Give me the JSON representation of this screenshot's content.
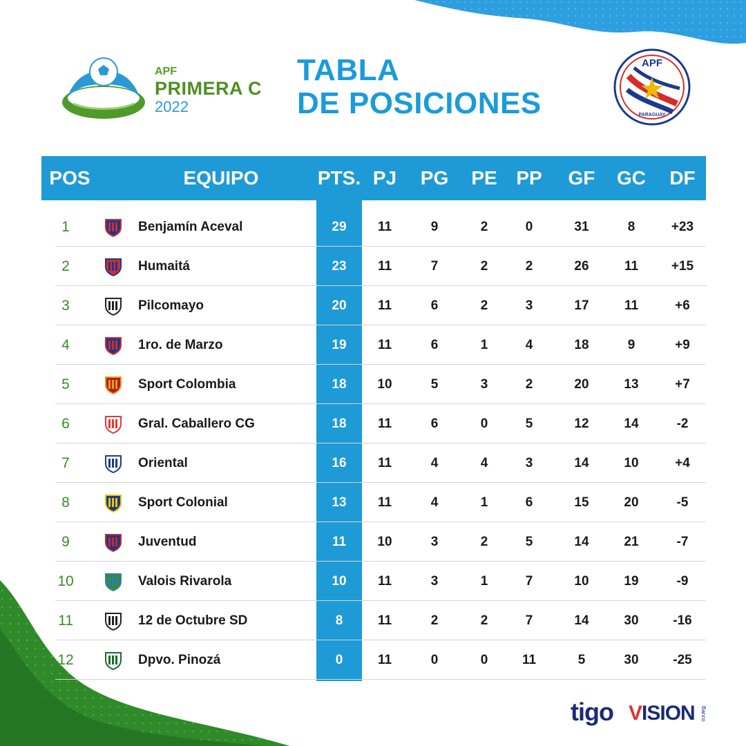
{
  "league": {
    "line1": "APF",
    "line2": "PRIMERA C",
    "line3": "2022"
  },
  "title": {
    "line1": "TABLA",
    "line2": "DE POSICIONES"
  },
  "federation_logo": {
    "top_text": "APF",
    "bottom_text": "PARAGUAY"
  },
  "table": {
    "headers": [
      "POS",
      "EQUIPO",
      "PTS.",
      "PJ",
      "PG",
      "PE",
      "PP",
      "GF",
      "GC",
      "DF"
    ],
    "rows": [
      {
        "pos": "1",
        "team": "Benjamín Aceval",
        "pts": "29",
        "pj": "11",
        "pg": "9",
        "pe": "2",
        "pp": "0",
        "gf": "31",
        "gc": "8",
        "df": "+23"
      },
      {
        "pos": "2",
        "team": "Humaitá",
        "pts": "23",
        "pj": "11",
        "pg": "7",
        "pe": "2",
        "pp": "2",
        "gf": "26",
        "gc": "11",
        "df": "+15"
      },
      {
        "pos": "3",
        "team": "Pilcomayo",
        "pts": "20",
        "pj": "11",
        "pg": "6",
        "pe": "2",
        "pp": "3",
        "gf": "17",
        "gc": "11",
        "df": "+6"
      },
      {
        "pos": "4",
        "team": "1ro. de Marzo",
        "pts": "19",
        "pj": "11",
        "pg": "6",
        "pe": "1",
        "pp": "4",
        "gf": "18",
        "gc": "9",
        "df": "+9"
      },
      {
        "pos": "5",
        "team": "Sport Colombia",
        "pts": "18",
        "pj": "10",
        "pg": "5",
        "pe": "3",
        "pp": "2",
        "gf": "20",
        "gc": "13",
        "df": "+7"
      },
      {
        "pos": "6",
        "team": "Gral. Caballero CG",
        "pts": "18",
        "pj": "11",
        "pg": "6",
        "pe": "0",
        "pp": "5",
        "gf": "12",
        "gc": "14",
        "df": "-2"
      },
      {
        "pos": "7",
        "team": "Oriental",
        "pts": "16",
        "pj": "11",
        "pg": "4",
        "pe": "4",
        "pp": "3",
        "gf": "14",
        "gc": "10",
        "df": "+4"
      },
      {
        "pos": "8",
        "team": "Sport Colonial",
        "pts": "13",
        "pj": "11",
        "pg": "4",
        "pe": "1",
        "pp": "6",
        "gf": "15",
        "gc": "20",
        "df": "-5"
      },
      {
        "pos": "9",
        "team": "Juventud",
        "pts": "11",
        "pj": "10",
        "pg": "3",
        "pe": "2",
        "pp": "5",
        "gf": "14",
        "gc": "21",
        "df": "-7"
      },
      {
        "pos": "10",
        "team": "Valois Rivarola",
        "pts": "10",
        "pj": "11",
        "pg": "3",
        "pe": "1",
        "pp": "7",
        "gf": "10",
        "gc": "19",
        "df": "-9"
      },
      {
        "pos": "11",
        "team": "12 de Octubre SD",
        "pts": "8",
        "pj": "11",
        "pg": "2",
        "pe": "2",
        "pp": "7",
        "gf": "14",
        "gc": "30",
        "df": "-16"
      },
      {
        "pos": "12",
        "team": "Dpvo. Pinozá",
        "pts": "0",
        "pj": "11",
        "pg": "0",
        "pe": "0",
        "pp": "11",
        "gf": "5",
        "gc": "30",
        "df": "-25"
      }
    ]
  },
  "crests": [
    {
      "name": "benjamin-aceval-crest",
      "primary": "#d62b2b",
      "secondary": "#1a3a8c"
    },
    {
      "name": "humaita-crest",
      "primary": "#1a3a8c",
      "secondary": "#d62b2b"
    },
    {
      "name": "pilcomayo-crest",
      "primary": "#222222",
      "secondary": "#ffffff"
    },
    {
      "name": "primero-de-marzo-crest",
      "primary": "#d62b2b",
      "secondary": "#1a3a8c"
    },
    {
      "name": "sport-colombia-crest",
      "primary": "#e8a017",
      "secondary": "#b01e2e"
    },
    {
      "name": "gral-caballero-crest",
      "primary": "#e53935",
      "secondary": "#ffffff"
    },
    {
      "name": "oriental-crest",
      "primary": "#1a3a8c",
      "secondary": "#ffffff"
    },
    {
      "name": "sport-colonial-crest",
      "primary": "#f2c300",
      "secondary": "#1a3a8c"
    },
    {
      "name": "juventud-crest",
      "primary": "#c62828",
      "secondary": "#1a3a8c"
    },
    {
      "name": "valois-rivarola-crest",
      "primary": "#2a7fc4",
      "secondary": "#3a8a2a"
    },
    {
      "name": "doce-de-octubre-crest",
      "primary": "#222222",
      "secondary": "#ffffff"
    },
    {
      "name": "pinoza-crest",
      "primary": "#1b6b2a",
      "secondary": "#ffffff"
    }
  ],
  "sponsors": {
    "tigo": "tigo",
    "vision_v": "V",
    "vision_rest": "ISION",
    "banco": "Banco"
  },
  "colors": {
    "table_blue": "#1e9ad7",
    "title_blue": "#1a9bdb",
    "league_green": "#4f8f22",
    "position_green": "#3a8a2a",
    "sponsor_navy": "#1b2a78",
    "vision_red": "#e2312b"
  }
}
